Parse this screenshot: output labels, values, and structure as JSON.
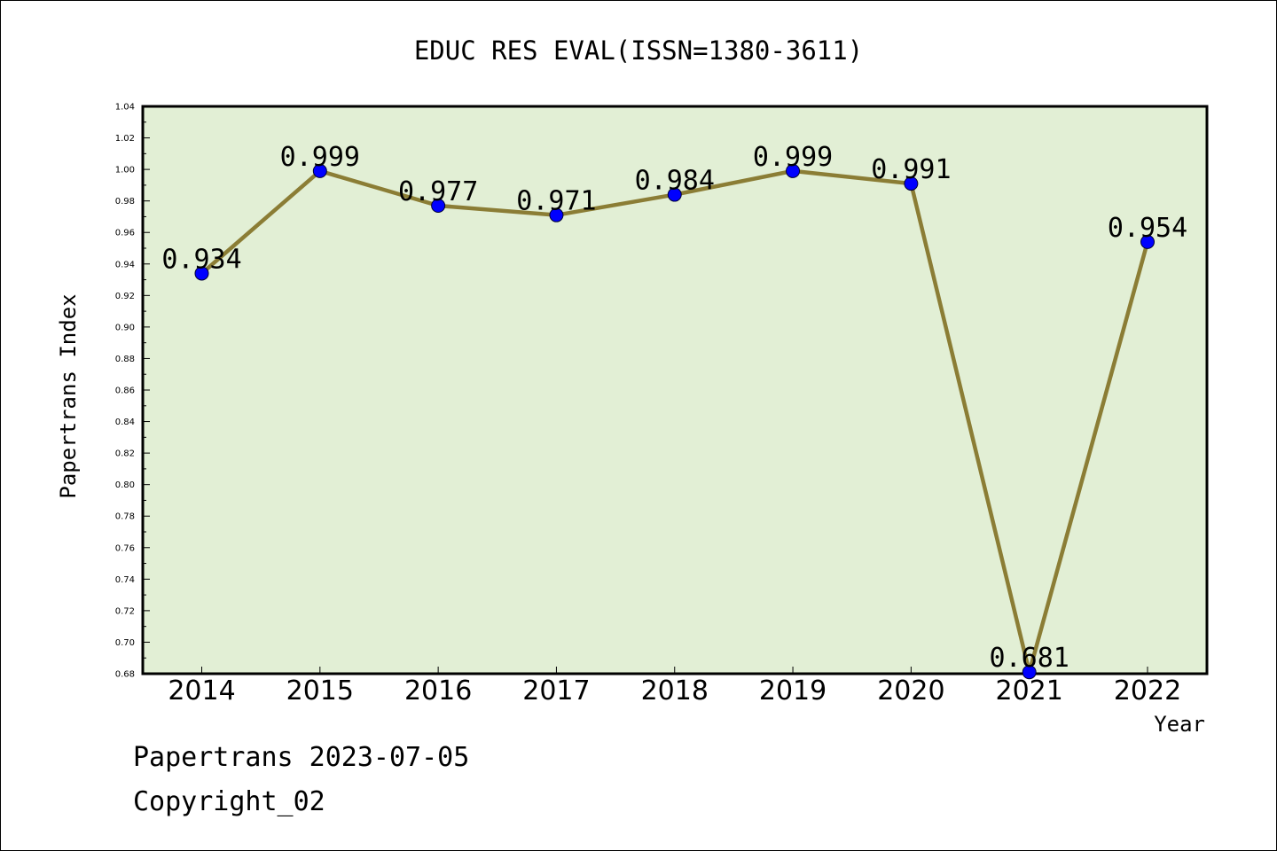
{
  "chart_data": {
    "type": "line",
    "title": "EDUC RES EVAL(ISSN=1380-3611)",
    "xlabel": "Year",
    "ylabel": "Papertrans Index",
    "categories": [
      "2014",
      "2015",
      "2016",
      "2017",
      "2018",
      "2019",
      "2020",
      "2021",
      "2022"
    ],
    "series": [
      {
        "values": [
          0.934,
          0.999,
          0.977,
          0.971,
          0.984,
          0.999,
          0.991,
          0.681,
          0.954
        ],
        "labels": [
          "0.934",
          "0.999",
          "0.977",
          "0.971",
          "0.984",
          "0.999",
          "0.991",
          "0.681",
          "0.954"
        ],
        "line_color": "#8b7d35",
        "marker_color": "#0000ff"
      }
    ],
    "ylim": [
      0.68,
      1.04
    ],
    "yticks": [
      "0.68",
      "0.70",
      "0.72",
      "0.74",
      "0.76",
      "0.78",
      "0.80",
      "0.82",
      "0.84",
      "0.86",
      "0.88",
      "0.90",
      "0.92",
      "0.94",
      "0.96",
      "0.98",
      "1.00",
      "1.02",
      "1.04"
    ],
    "plot_background": "#e2efd5",
    "grid": false,
    "legend": "none"
  },
  "footer": {
    "date_line": "Papertrans 2023-07-05",
    "copyright": "Copyright_02"
  }
}
